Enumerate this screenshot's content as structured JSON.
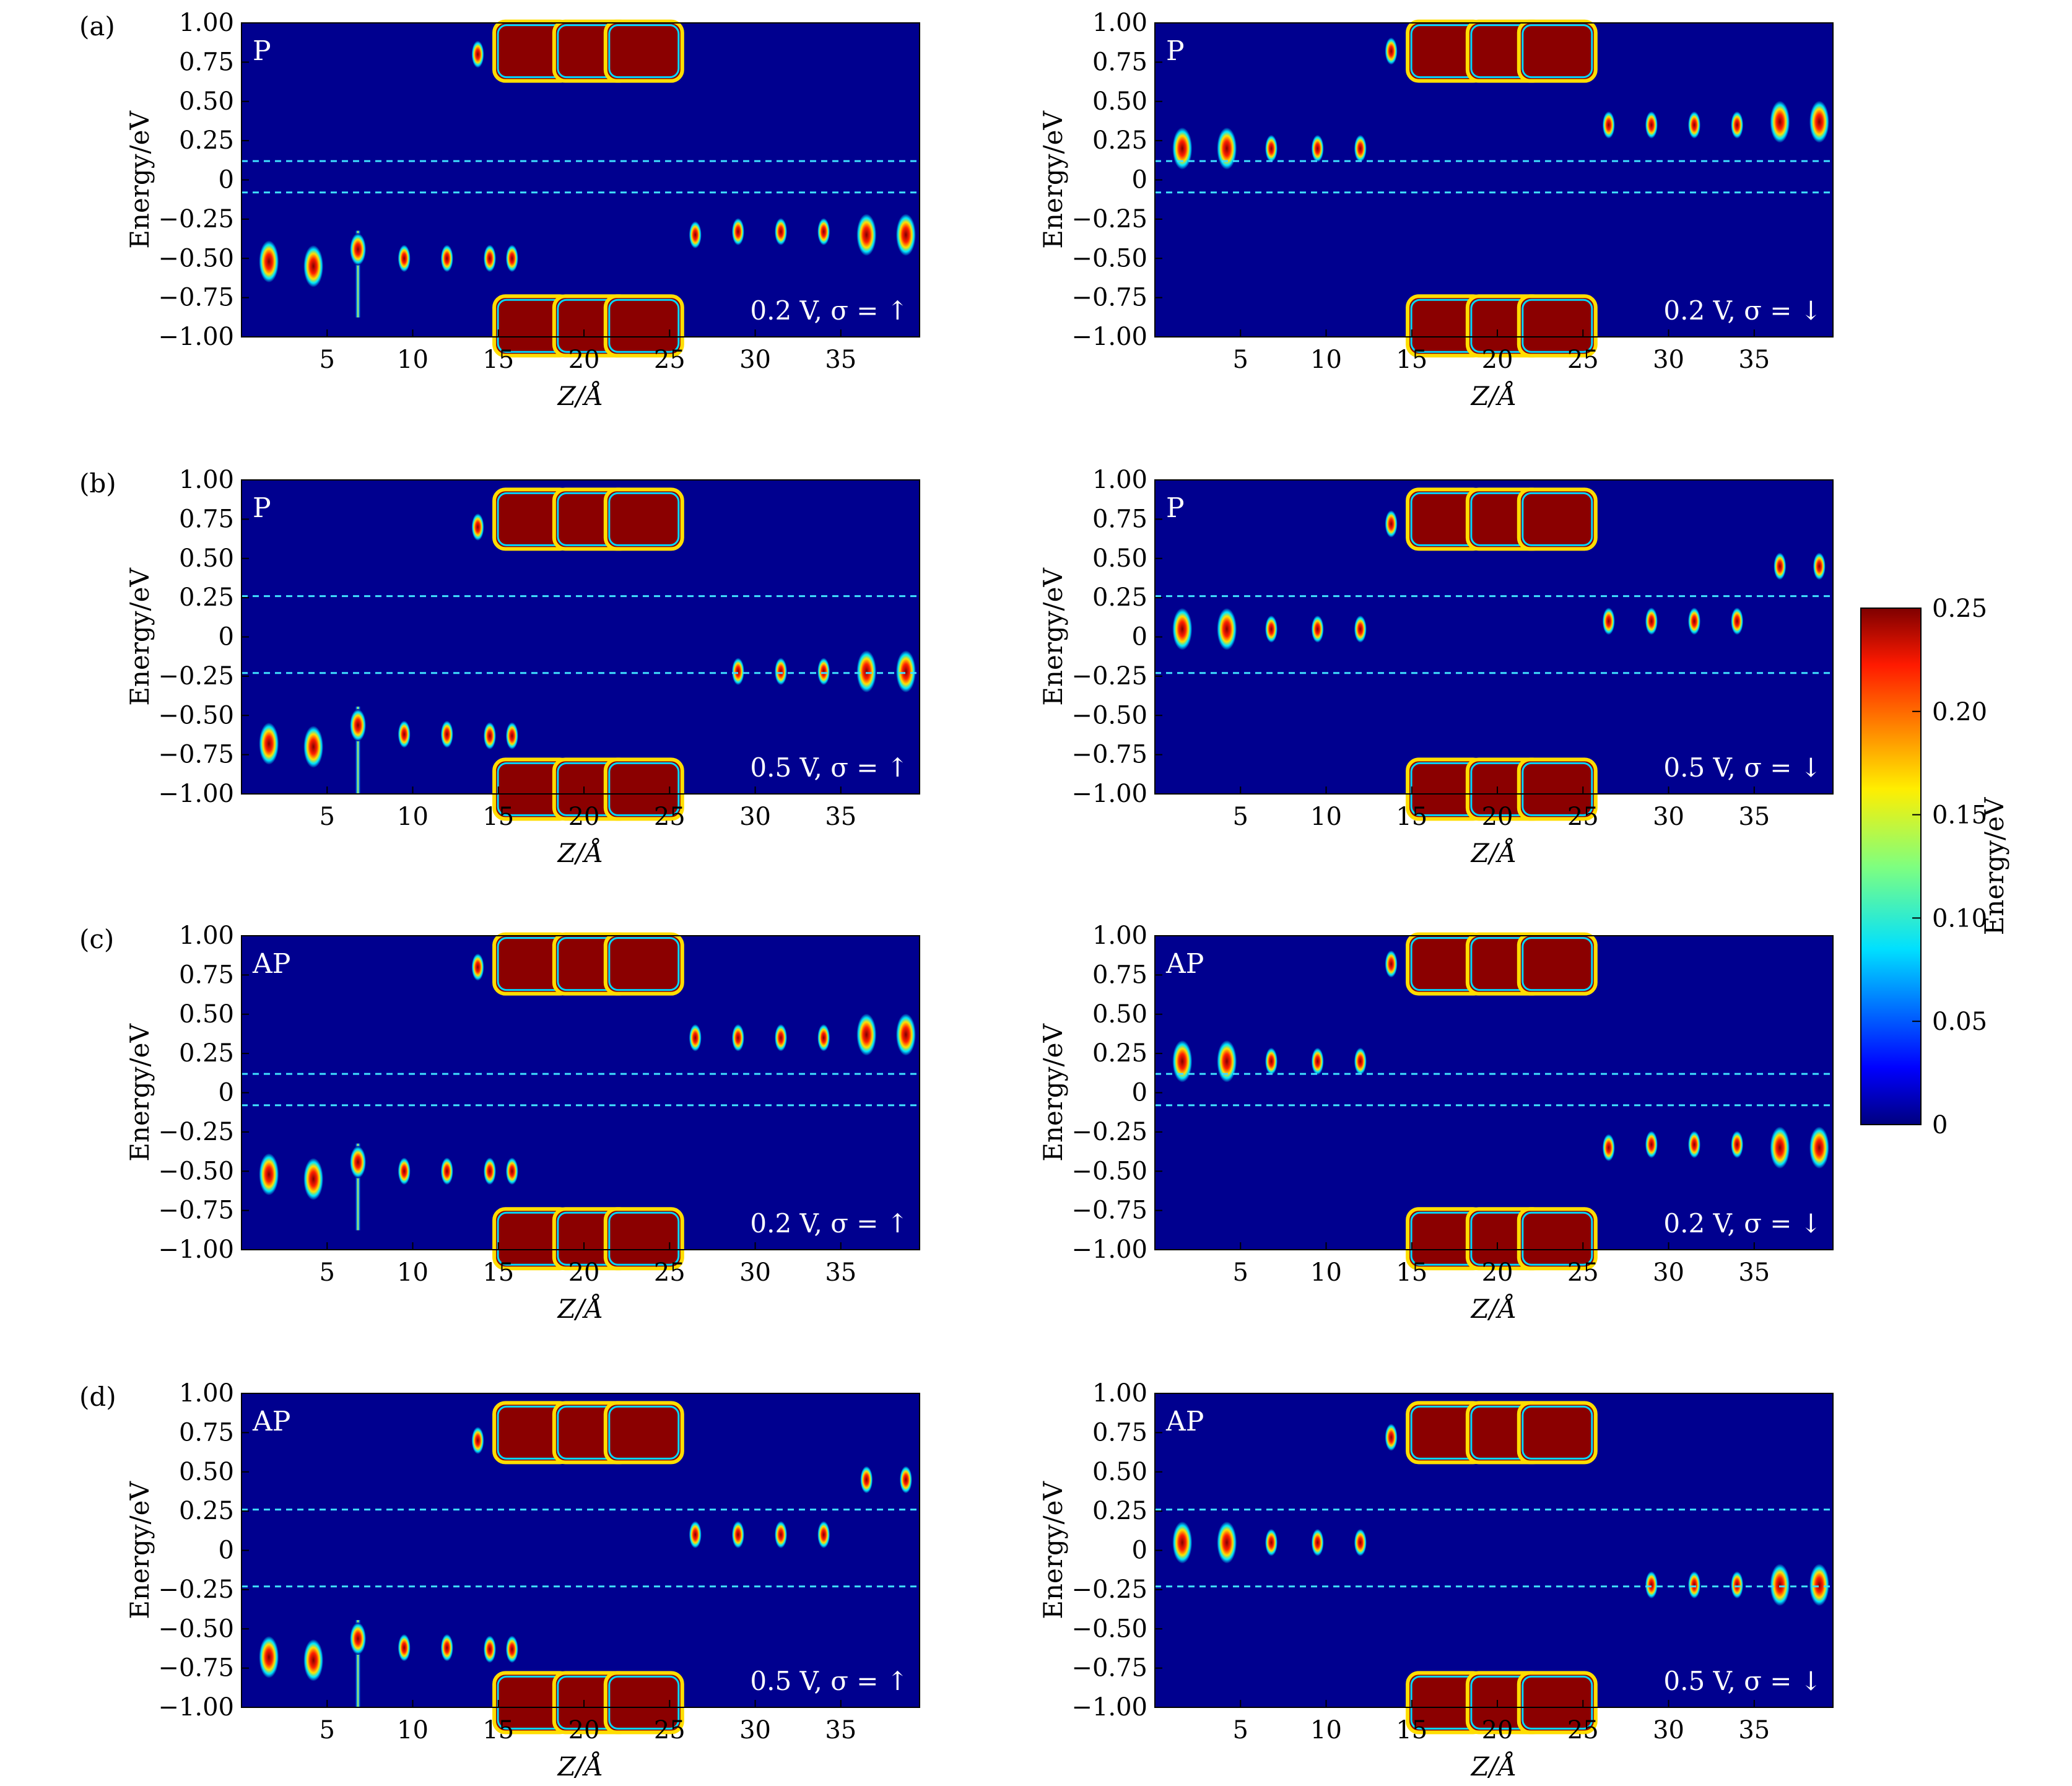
{
  "figure": {
    "colorbar": {
      "label": "Energy/eV",
      "ticks": [
        "0",
        "0.05",
        "0.10",
        "0.15",
        "0.20",
        "0.25"
      ],
      "range": [
        0,
        0.25
      ],
      "colormap": "jet"
    }
  },
  "chart_data": [
    {
      "type": "heatmap",
      "row": "(a)",
      "column": "left",
      "panel_tag": "P",
      "annotation": "0.2 V, σ = ↑",
      "xlabel": "Z/Å",
      "ylabel": "Energy/eV",
      "xlim": [
        0,
        39.6
      ],
      "ylim": [
        -1.0,
        1.0
      ],
      "xticks": [
        "5",
        "10",
        "15",
        "20",
        "25",
        "30",
        "35"
      ],
      "yticks": [
        "1.00",
        "0.75",
        "0.50",
        "0.25",
        "0",
        "−0.25",
        "−0.50",
        "−0.75",
        "−1.00"
      ],
      "dashed_lines_energy": [
        0.12,
        -0.08
      ],
      "features": [
        {
          "z": 1.6,
          "e": -0.52,
          "kind": "blob"
        },
        {
          "z": 4.2,
          "e": -0.55,
          "kind": "blob"
        },
        {
          "z": 6.8,
          "e": -0.6,
          "kind": "streak"
        },
        {
          "z": 9.5,
          "e": -0.5,
          "kind": "small"
        },
        {
          "z": 12.0,
          "e": -0.5,
          "kind": "small"
        },
        {
          "z": 14.5,
          "e": -0.5,
          "kind": "small"
        },
        {
          "z": 15.8,
          "e": -0.5,
          "kind": "small"
        },
        {
          "z": 13.8,
          "e": 0.8,
          "kind": "small"
        },
        {
          "z": 17.0,
          "e": 0.82,
          "kind": "band"
        },
        {
          "z": 20.5,
          "e": 0.82,
          "kind": "band"
        },
        {
          "z": 23.5,
          "e": 0.82,
          "kind": "band"
        },
        {
          "z": 17.0,
          "e": -0.93,
          "kind": "band"
        },
        {
          "z": 20.5,
          "e": -0.93,
          "kind": "band"
        },
        {
          "z": 23.5,
          "e": -0.93,
          "kind": "band"
        },
        {
          "z": 26.5,
          "e": -0.35,
          "kind": "small"
        },
        {
          "z": 29.0,
          "e": -0.33,
          "kind": "small"
        },
        {
          "z": 31.5,
          "e": -0.33,
          "kind": "small"
        },
        {
          "z": 34.0,
          "e": -0.33,
          "kind": "small"
        },
        {
          "z": 36.5,
          "e": -0.35,
          "kind": "blob"
        },
        {
          "z": 38.8,
          "e": -0.35,
          "kind": "blob"
        }
      ]
    },
    {
      "type": "heatmap",
      "row": "(a)",
      "column": "right",
      "panel_tag": "P",
      "annotation": "0.2 V, σ = ↓",
      "xlabel": "Z/Å",
      "ylabel": "Energy/eV",
      "xlim": [
        0,
        39.6
      ],
      "ylim": [
        -1.0,
        1.0
      ],
      "xticks": [
        "5",
        "10",
        "15",
        "20",
        "25",
        "30",
        "35"
      ],
      "yticks": [
        "1.00",
        "0.75",
        "0.50",
        "0.25",
        "0",
        "−0.25",
        "−0.50",
        "−0.75",
        "−1.00"
      ],
      "dashed_lines_energy": [
        0.12,
        -0.08
      ],
      "features": [
        {
          "z": 1.6,
          "e": 0.2,
          "kind": "blob"
        },
        {
          "z": 4.2,
          "e": 0.2,
          "kind": "blob"
        },
        {
          "z": 6.8,
          "e": 0.2,
          "kind": "small"
        },
        {
          "z": 9.5,
          "e": 0.2,
          "kind": "small"
        },
        {
          "z": 12.0,
          "e": 0.2,
          "kind": "small"
        },
        {
          "z": 13.8,
          "e": 0.82,
          "kind": "small"
        },
        {
          "z": 17.0,
          "e": 0.82,
          "kind": "band"
        },
        {
          "z": 20.5,
          "e": 0.82,
          "kind": "band"
        },
        {
          "z": 23.5,
          "e": 0.82,
          "kind": "band"
        },
        {
          "z": 17.0,
          "e": -0.93,
          "kind": "band"
        },
        {
          "z": 20.5,
          "e": -0.93,
          "kind": "band"
        },
        {
          "z": 23.5,
          "e": -0.93,
          "kind": "band"
        },
        {
          "z": 26.5,
          "e": 0.35,
          "kind": "small"
        },
        {
          "z": 29.0,
          "e": 0.35,
          "kind": "small"
        },
        {
          "z": 31.5,
          "e": 0.35,
          "kind": "small"
        },
        {
          "z": 34.0,
          "e": 0.35,
          "kind": "small"
        },
        {
          "z": 36.5,
          "e": 0.37,
          "kind": "blob"
        },
        {
          "z": 38.8,
          "e": 0.37,
          "kind": "blob"
        }
      ]
    },
    {
      "type": "heatmap",
      "row": "(b)",
      "column": "left",
      "panel_tag": "P",
      "annotation": "0.5 V, σ = ↑",
      "xlabel": "Z/Å",
      "ylabel": "Energy/eV",
      "xlim": [
        0,
        39.6
      ],
      "ylim": [
        -1.0,
        1.0
      ],
      "xticks": [
        "5",
        "10",
        "15",
        "20",
        "25",
        "30",
        "35"
      ],
      "yticks": [
        "1.00",
        "0.75",
        "0.50",
        "0.25",
        "0",
        "−0.25",
        "−0.50",
        "−0.75",
        "−1.00"
      ],
      "dashed_lines_energy": [
        0.26,
        -0.23
      ],
      "features": [
        {
          "z": 1.6,
          "e": -0.68,
          "kind": "blob"
        },
        {
          "z": 4.2,
          "e": -0.7,
          "kind": "blob"
        },
        {
          "z": 6.8,
          "e": -0.72,
          "kind": "streak"
        },
        {
          "z": 9.5,
          "e": -0.62,
          "kind": "small"
        },
        {
          "z": 12.0,
          "e": -0.62,
          "kind": "small"
        },
        {
          "z": 14.5,
          "e": -0.63,
          "kind": "small"
        },
        {
          "z": 15.8,
          "e": -0.63,
          "kind": "small"
        },
        {
          "z": 13.8,
          "e": 0.7,
          "kind": "small"
        },
        {
          "z": 17.0,
          "e": 0.75,
          "kind": "band"
        },
        {
          "z": 20.5,
          "e": 0.75,
          "kind": "band"
        },
        {
          "z": 23.5,
          "e": 0.75,
          "kind": "band"
        },
        {
          "z": 17.0,
          "e": -0.97,
          "kind": "band"
        },
        {
          "z": 20.5,
          "e": -0.97,
          "kind": "band"
        },
        {
          "z": 23.5,
          "e": -0.97,
          "kind": "band"
        },
        {
          "z": 29.0,
          "e": -0.22,
          "kind": "small"
        },
        {
          "z": 31.5,
          "e": -0.22,
          "kind": "small"
        },
        {
          "z": 34.0,
          "e": -0.22,
          "kind": "small"
        },
        {
          "z": 36.5,
          "e": -0.22,
          "kind": "blob"
        },
        {
          "z": 38.8,
          "e": -0.22,
          "kind": "blob"
        }
      ]
    },
    {
      "type": "heatmap",
      "row": "(b)",
      "column": "right",
      "panel_tag": "P",
      "annotation": "0.5 V, σ = ↓",
      "xlabel": "Z/Å",
      "ylabel": "Energy/eV",
      "xlim": [
        0,
        39.6
      ],
      "ylim": [
        -1.0,
        1.0
      ],
      "xticks": [
        "5",
        "10",
        "15",
        "20",
        "25",
        "30",
        "35"
      ],
      "yticks": [
        "1.00",
        "0.75",
        "0.50",
        "0.25",
        "0",
        "−0.25",
        "−0.50",
        "−0.75",
        "−1.00"
      ],
      "dashed_lines_energy": [
        0.26,
        -0.23
      ],
      "features": [
        {
          "z": 1.6,
          "e": 0.05,
          "kind": "blob"
        },
        {
          "z": 4.2,
          "e": 0.05,
          "kind": "blob"
        },
        {
          "z": 6.8,
          "e": 0.05,
          "kind": "small"
        },
        {
          "z": 9.5,
          "e": 0.05,
          "kind": "small"
        },
        {
          "z": 12.0,
          "e": 0.05,
          "kind": "small"
        },
        {
          "z": 13.8,
          "e": 0.72,
          "kind": "small"
        },
        {
          "z": 17.0,
          "e": 0.75,
          "kind": "band"
        },
        {
          "z": 20.5,
          "e": 0.75,
          "kind": "band"
        },
        {
          "z": 23.5,
          "e": 0.75,
          "kind": "band"
        },
        {
          "z": 17.0,
          "e": -0.97,
          "kind": "band"
        },
        {
          "z": 20.5,
          "e": -0.97,
          "kind": "band"
        },
        {
          "z": 23.5,
          "e": -0.97,
          "kind": "band"
        },
        {
          "z": 26.5,
          "e": 0.1,
          "kind": "small"
        },
        {
          "z": 29.0,
          "e": 0.1,
          "kind": "small"
        },
        {
          "z": 31.5,
          "e": 0.1,
          "kind": "small"
        },
        {
          "z": 34.0,
          "e": 0.1,
          "kind": "small"
        },
        {
          "z": 36.5,
          "e": 0.45,
          "kind": "small"
        },
        {
          "z": 38.8,
          "e": 0.45,
          "kind": "small"
        }
      ]
    },
    {
      "type": "heatmap",
      "row": "(c)",
      "column": "left",
      "panel_tag": "AP",
      "annotation": "0.2 V, σ = ↑",
      "xlabel": "Z/Å",
      "ylabel": "Energy/eV",
      "xlim": [
        0,
        39.6
      ],
      "ylim": [
        -1.0,
        1.0
      ],
      "xticks": [
        "5",
        "10",
        "15",
        "20",
        "25",
        "30",
        "35"
      ],
      "yticks": [
        "1.00",
        "0.75",
        "0.50",
        "0.25",
        "0",
        "−0.25",
        "−0.50",
        "−0.75",
        "−1.00"
      ],
      "dashed_lines_energy": [
        0.12,
        -0.08
      ],
      "features": [
        {
          "z": 1.6,
          "e": -0.52,
          "kind": "blob"
        },
        {
          "z": 4.2,
          "e": -0.55,
          "kind": "blob"
        },
        {
          "z": 6.8,
          "e": -0.6,
          "kind": "streak"
        },
        {
          "z": 9.5,
          "e": -0.5,
          "kind": "small"
        },
        {
          "z": 12.0,
          "e": -0.5,
          "kind": "small"
        },
        {
          "z": 14.5,
          "e": -0.5,
          "kind": "small"
        },
        {
          "z": 15.8,
          "e": -0.5,
          "kind": "small"
        },
        {
          "z": 13.8,
          "e": 0.8,
          "kind": "small"
        },
        {
          "z": 17.0,
          "e": 0.82,
          "kind": "band"
        },
        {
          "z": 20.5,
          "e": 0.82,
          "kind": "band"
        },
        {
          "z": 23.5,
          "e": 0.82,
          "kind": "band"
        },
        {
          "z": 17.0,
          "e": -0.93,
          "kind": "band"
        },
        {
          "z": 20.5,
          "e": -0.93,
          "kind": "band"
        },
        {
          "z": 23.5,
          "e": -0.93,
          "kind": "band"
        },
        {
          "z": 26.5,
          "e": 0.35,
          "kind": "small"
        },
        {
          "z": 29.0,
          "e": 0.35,
          "kind": "small"
        },
        {
          "z": 31.5,
          "e": 0.35,
          "kind": "small"
        },
        {
          "z": 34.0,
          "e": 0.35,
          "kind": "small"
        },
        {
          "z": 36.5,
          "e": 0.37,
          "kind": "blob"
        },
        {
          "z": 38.8,
          "e": 0.37,
          "kind": "blob"
        }
      ]
    },
    {
      "type": "heatmap",
      "row": "(c)",
      "column": "right",
      "panel_tag": "AP",
      "annotation": "0.2 V, σ = ↓",
      "xlabel": "Z/Å",
      "ylabel": "Energy/eV",
      "xlim": [
        0,
        39.6
      ],
      "ylim": [
        -1.0,
        1.0
      ],
      "xticks": [
        "5",
        "10",
        "15",
        "20",
        "25",
        "30",
        "35"
      ],
      "yticks": [
        "1.00",
        "0.75",
        "0.50",
        "0.25",
        "0",
        "−0.25",
        "−0.50",
        "−0.75",
        "−1.00"
      ],
      "dashed_lines_energy": [
        0.12,
        -0.08
      ],
      "features": [
        {
          "z": 1.6,
          "e": 0.2,
          "kind": "blob"
        },
        {
          "z": 4.2,
          "e": 0.2,
          "kind": "blob"
        },
        {
          "z": 6.8,
          "e": 0.2,
          "kind": "small"
        },
        {
          "z": 9.5,
          "e": 0.2,
          "kind": "small"
        },
        {
          "z": 12.0,
          "e": 0.2,
          "kind": "small"
        },
        {
          "z": 13.8,
          "e": 0.82,
          "kind": "small"
        },
        {
          "z": 17.0,
          "e": 0.82,
          "kind": "band"
        },
        {
          "z": 20.5,
          "e": 0.82,
          "kind": "band"
        },
        {
          "z": 23.5,
          "e": 0.82,
          "kind": "band"
        },
        {
          "z": 17.0,
          "e": -0.93,
          "kind": "band"
        },
        {
          "z": 20.5,
          "e": -0.93,
          "kind": "band"
        },
        {
          "z": 23.5,
          "e": -0.93,
          "kind": "band"
        },
        {
          "z": 26.5,
          "e": -0.35,
          "kind": "small"
        },
        {
          "z": 29.0,
          "e": -0.33,
          "kind": "small"
        },
        {
          "z": 31.5,
          "e": -0.33,
          "kind": "small"
        },
        {
          "z": 34.0,
          "e": -0.33,
          "kind": "small"
        },
        {
          "z": 36.5,
          "e": -0.35,
          "kind": "blob"
        },
        {
          "z": 38.8,
          "e": -0.35,
          "kind": "blob"
        }
      ]
    },
    {
      "type": "heatmap",
      "row": "(d)",
      "column": "left",
      "panel_tag": "AP",
      "annotation": "0.5 V, σ = ↑",
      "xlabel": "Z/Å",
      "ylabel": "Energy/eV",
      "xlim": [
        0,
        39.6
      ],
      "ylim": [
        -1.0,
        1.0
      ],
      "xticks": [
        "5",
        "10",
        "15",
        "20",
        "25",
        "30",
        "35"
      ],
      "yticks": [
        "1.00",
        "0.75",
        "0.50",
        "0.25",
        "0",
        "−0.25",
        "−0.50",
        "−0.75",
        "−1.00"
      ],
      "dashed_lines_energy": [
        0.26,
        -0.23
      ],
      "features": [
        {
          "z": 1.6,
          "e": -0.68,
          "kind": "blob"
        },
        {
          "z": 4.2,
          "e": -0.7,
          "kind": "blob"
        },
        {
          "z": 6.8,
          "e": -0.72,
          "kind": "streak"
        },
        {
          "z": 9.5,
          "e": -0.62,
          "kind": "small"
        },
        {
          "z": 12.0,
          "e": -0.62,
          "kind": "small"
        },
        {
          "z": 14.5,
          "e": -0.63,
          "kind": "small"
        },
        {
          "z": 15.8,
          "e": -0.63,
          "kind": "small"
        },
        {
          "z": 13.8,
          "e": 0.7,
          "kind": "small"
        },
        {
          "z": 17.0,
          "e": 0.75,
          "kind": "band"
        },
        {
          "z": 20.5,
          "e": 0.75,
          "kind": "band"
        },
        {
          "z": 23.5,
          "e": 0.75,
          "kind": "band"
        },
        {
          "z": 17.0,
          "e": -0.97,
          "kind": "band"
        },
        {
          "z": 20.5,
          "e": -0.97,
          "kind": "band"
        },
        {
          "z": 23.5,
          "e": -0.97,
          "kind": "band"
        },
        {
          "z": 26.5,
          "e": 0.1,
          "kind": "small"
        },
        {
          "z": 29.0,
          "e": 0.1,
          "kind": "small"
        },
        {
          "z": 31.5,
          "e": 0.1,
          "kind": "small"
        },
        {
          "z": 34.0,
          "e": 0.1,
          "kind": "small"
        },
        {
          "z": 36.5,
          "e": 0.45,
          "kind": "small"
        },
        {
          "z": 38.8,
          "e": 0.45,
          "kind": "small"
        }
      ]
    },
    {
      "type": "heatmap",
      "row": "(d)",
      "column": "right",
      "panel_tag": "AP",
      "annotation": "0.5 V, σ = ↓",
      "xlabel": "Z/Å",
      "ylabel": "Energy/eV",
      "xlim": [
        0,
        39.6
      ],
      "ylim": [
        -1.0,
        1.0
      ],
      "xticks": [
        "5",
        "10",
        "15",
        "20",
        "25",
        "30",
        "35"
      ],
      "yticks": [
        "1.00",
        "0.75",
        "0.50",
        "0.25",
        "0",
        "−0.25",
        "−0.50",
        "−0.75",
        "−1.00"
      ],
      "dashed_lines_energy": [
        0.26,
        -0.23
      ],
      "features": [
        {
          "z": 1.6,
          "e": 0.05,
          "kind": "blob"
        },
        {
          "z": 4.2,
          "e": 0.05,
          "kind": "blob"
        },
        {
          "z": 6.8,
          "e": 0.05,
          "kind": "small"
        },
        {
          "z": 9.5,
          "e": 0.05,
          "kind": "small"
        },
        {
          "z": 12.0,
          "e": 0.05,
          "kind": "small"
        },
        {
          "z": 13.8,
          "e": 0.72,
          "kind": "small"
        },
        {
          "z": 17.0,
          "e": 0.75,
          "kind": "band"
        },
        {
          "z": 20.5,
          "e": 0.75,
          "kind": "band"
        },
        {
          "z": 23.5,
          "e": 0.75,
          "kind": "band"
        },
        {
          "z": 17.0,
          "e": -0.97,
          "kind": "band"
        },
        {
          "z": 20.5,
          "e": -0.97,
          "kind": "band"
        },
        {
          "z": 23.5,
          "e": -0.97,
          "kind": "band"
        },
        {
          "z": 29.0,
          "e": -0.22,
          "kind": "small"
        },
        {
          "z": 31.5,
          "e": -0.22,
          "kind": "small"
        },
        {
          "z": 34.0,
          "e": -0.22,
          "kind": "small"
        },
        {
          "z": 36.5,
          "e": -0.22,
          "kind": "blob"
        },
        {
          "z": 38.8,
          "e": -0.22,
          "kind": "blob"
        }
      ]
    }
  ]
}
